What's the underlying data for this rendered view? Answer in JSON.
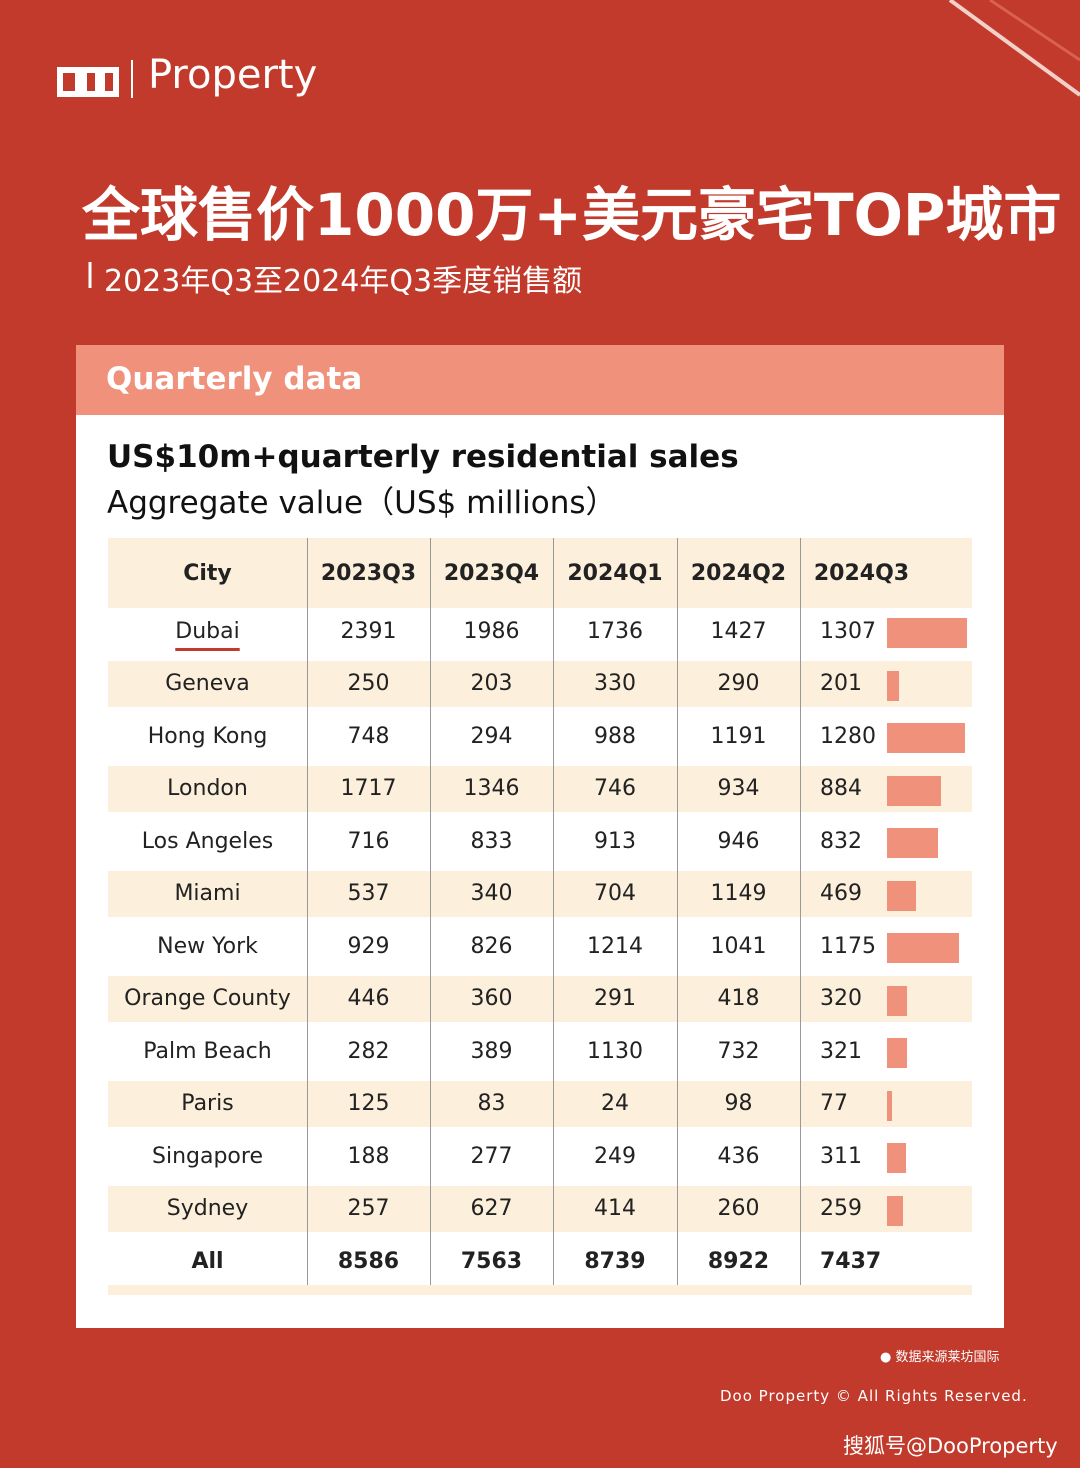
{
  "header": {
    "brand": "Property",
    "title": "全球售价1000万+美元豪宅TOP城市",
    "subtitle": "2023年Q3至2024年Q3季度销售额"
  },
  "card": {
    "label": "Quarterly data",
    "heading": "US$10m+quarterly residential sales",
    "subheading": "Aggregate value（US$ millions）"
  },
  "table": {
    "columns": [
      "City",
      "2023Q3",
      "2023Q4",
      "2024Q1",
      "2024Q2",
      "2024Q3"
    ],
    "rows": [
      [
        "Dubai",
        2391,
        1986,
        1736,
        1427,
        1307
      ],
      [
        "Geneva",
        250,
        203,
        330,
        290,
        201
      ],
      [
        "Hong Kong",
        748,
        294,
        988,
        1191,
        1280
      ],
      [
        "London",
        1717,
        1346,
        746,
        934,
        884
      ],
      [
        "Los Angeles",
        716,
        833,
        913,
        946,
        832
      ],
      [
        "Miami",
        537,
        340,
        704,
        1149,
        469
      ],
      [
        "New York",
        929,
        826,
        1214,
        1041,
        1175
      ],
      [
        "Orange County",
        446,
        360,
        291,
        418,
        320
      ],
      [
        "Palm Beach",
        282,
        389,
        1130,
        732,
        321
      ],
      [
        "Paris",
        125,
        83,
        24,
        98,
        77
      ],
      [
        "Singapore",
        188,
        277,
        249,
        436,
        311
      ],
      [
        "Sydney",
        257,
        627,
        414,
        260,
        259
      ]
    ],
    "total": [
      "All",
      8586,
      7563,
      8739,
      8922,
      7437
    ]
  },
  "footer": {
    "source": "数据来源莱坊国际",
    "copyright": "Doo Property © All Rights Reserved.",
    "watermark": "搜狐号@DooProperty"
  }
}
